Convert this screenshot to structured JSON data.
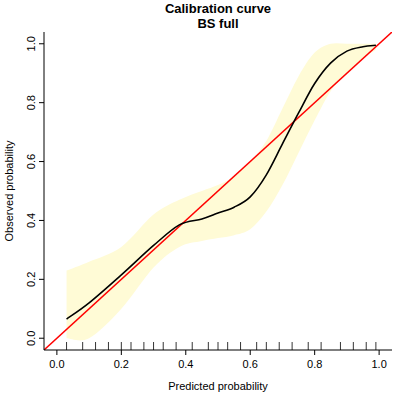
{
  "chart_data": {
    "type": "line",
    "title": "Calibration curve",
    "subtitle": "BS full",
    "x_label": "Predicted probability",
    "y_label": "Observed probability",
    "x": [
      0.03,
      0.1,
      0.2,
      0.3,
      0.38,
      0.45,
      0.5,
      0.55,
      0.6,
      0.65,
      0.7,
      0.75,
      0.8,
      0.85,
      0.9,
      0.95,
      0.99
    ],
    "series": [
      {
        "color": "#000000",
        "values": [
          0.065,
          0.12,
          0.215,
          0.315,
          0.385,
          0.405,
          0.425,
          0.445,
          0.48,
          0.555,
          0.66,
          0.765,
          0.865,
          0.935,
          0.975,
          0.99,
          0.995
        ]
      }
    ],
    "band": {
      "color": "#fffbd6",
      "lower": [
        0.0,
        0.0,
        0.1,
        0.24,
        0.31,
        0.33,
        0.34,
        0.35,
        0.37,
        0.43,
        0.52,
        0.63,
        0.74,
        0.84,
        0.9,
        0.95,
        0.98
      ],
      "upper": [
        0.23,
        0.26,
        0.31,
        0.42,
        0.47,
        0.5,
        0.52,
        0.55,
        0.6,
        0.67,
        0.78,
        0.89,
        0.97,
        1.0,
        1.0,
        1.0,
        1.0
      ]
    },
    "rug": [
      0.03,
      0.08,
      0.12,
      0.16,
      0.2,
      0.23,
      0.27,
      0.3,
      0.33,
      0.37,
      0.42,
      0.47,
      0.5,
      0.53,
      0.57,
      0.62,
      0.65,
      0.69,
      0.73,
      0.78,
      0.82,
      0.88,
      0.92,
      0.96,
      0.99
    ],
    "xlim": [
      -0.04,
      1.04
    ],
    "ylim": [
      -0.04,
      1.04
    ],
    "xticks": [
      {
        "value": 0,
        "label": "0.0"
      },
      0.2,
      0.4,
      0.6,
      0.8,
      {
        "value": 1,
        "label": "1.0"
      }
    ],
    "yticks": [
      {
        "value": 0,
        "label": "0.0"
      },
      0.2,
      0.4,
      0.6,
      0.8,
      {
        "value": 1,
        "label": "1.0"
      }
    ],
    "grid": false
  }
}
